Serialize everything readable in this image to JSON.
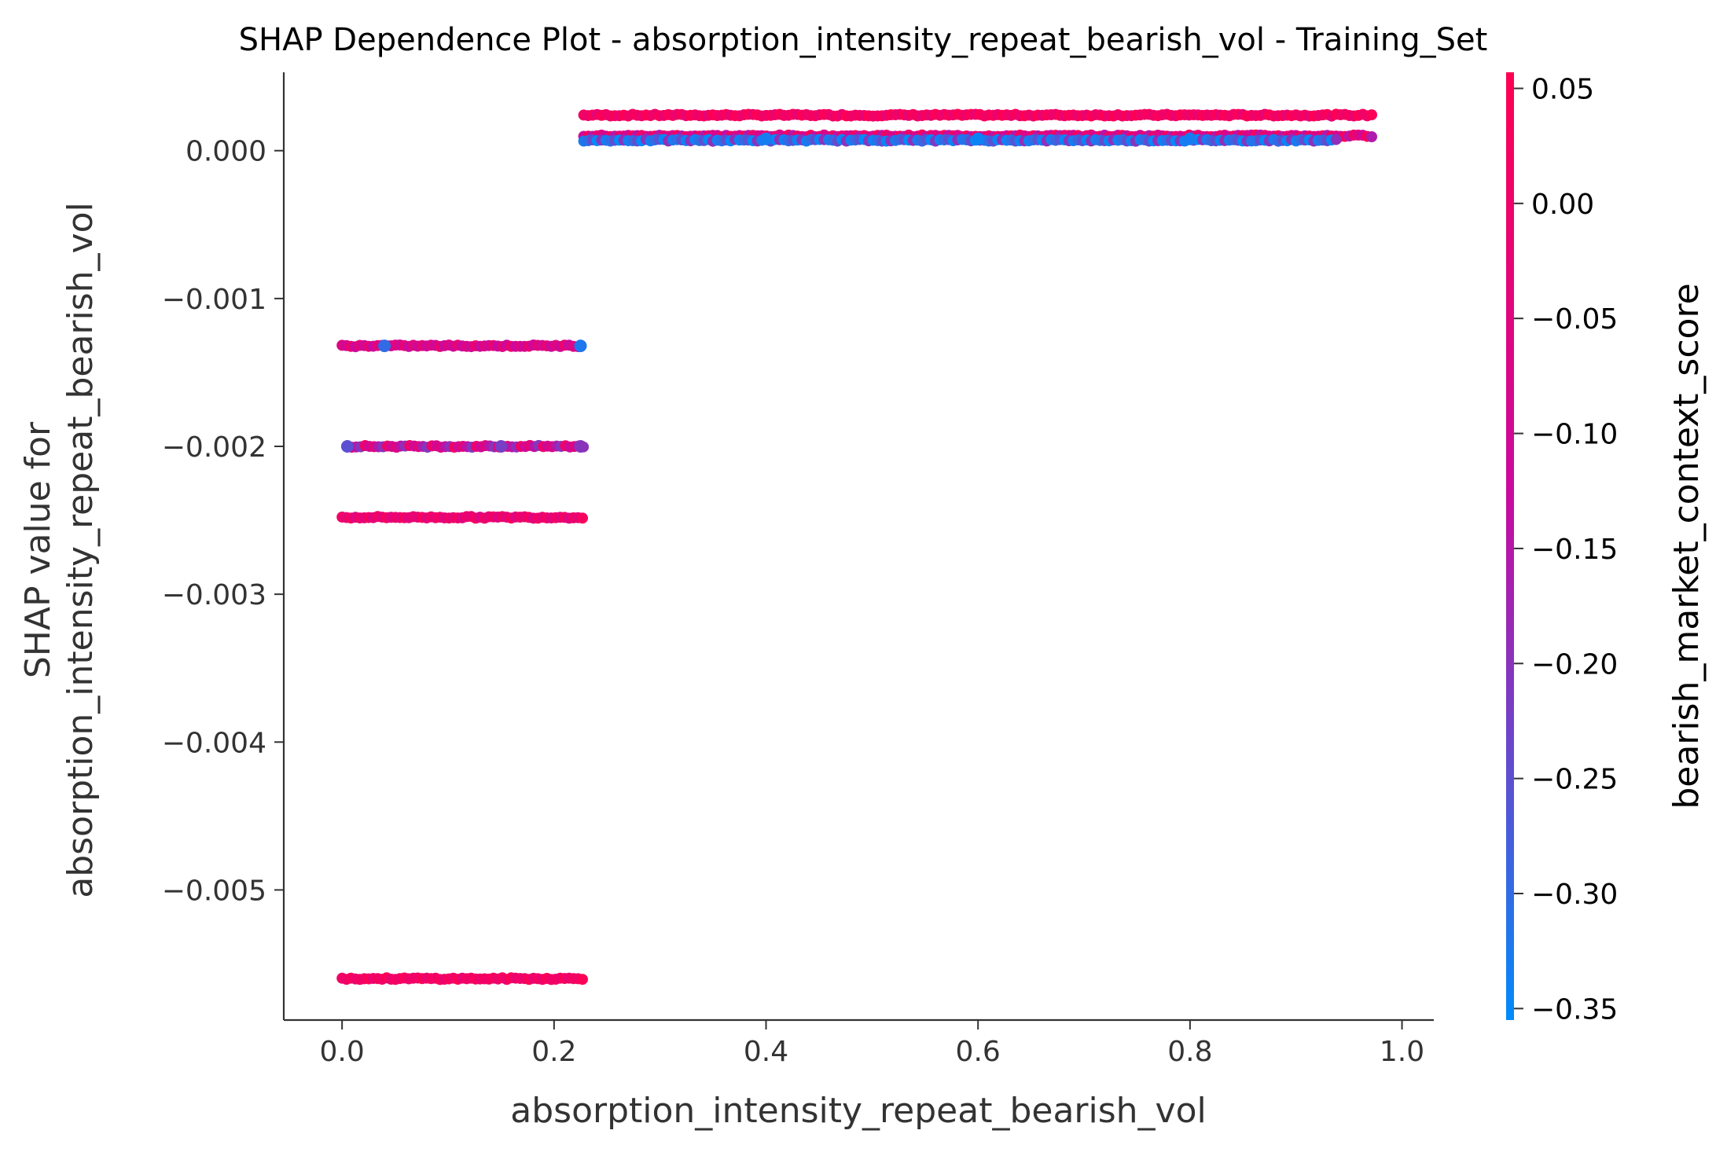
{
  "chart_data": {
    "type": "scatter",
    "title": "SHAP Dependence Plot - absorption_intensity_repeat_bearish_vol - Training_Set",
    "xlabel": "absorption_intensity_repeat_bearish_vol",
    "ylabel_lines": [
      "SHAP value for",
      "absorption_intensity_repeat_bearish_vol"
    ],
    "xlim": [
      -0.055,
      1.03
    ],
    "ylim": [
      -0.00588,
      0.00053
    ],
    "x_ticks": [
      0.0,
      0.2,
      0.4,
      0.6,
      0.8,
      1.0
    ],
    "x_tick_labels": [
      "0.0",
      "0.2",
      "0.4",
      "0.6",
      "0.8",
      "1.0"
    ],
    "y_ticks": [
      0.0,
      -0.001,
      -0.002,
      -0.003,
      -0.004,
      -0.005
    ],
    "y_tick_labels": [
      "0.000",
      "−0.001",
      "−0.002",
      "−0.003",
      "−0.004",
      "−0.005"
    ],
    "grid": false,
    "colorbar": {
      "label": "bearish_market_context_score",
      "range": [
        -0.355,
        0.057
      ],
      "ticks": [
        0.05,
        0.0,
        -0.05,
        -0.1,
        -0.15,
        -0.2,
        -0.25,
        -0.3,
        -0.35
      ],
      "tick_labels": [
        "0.05",
        "0.00",
        "−0.05",
        "−0.10",
        "−0.15",
        "−0.20",
        "−0.25",
        "−0.30",
        "−0.35"
      ],
      "color_low": "#008bfb",
      "color_mid": "#c90aa0",
      "color_high": "#ff0052"
    },
    "point_bands": [
      {
        "x_range": [
          0.228,
          0.975
        ],
        "y": 0.00024,
        "color_values": [
          0.02,
          0.0,
          0.04,
          -0.02,
          0.05
        ]
      },
      {
        "x_range": [
          0.228,
          0.975
        ],
        "y": 0.0001,
        "color_values": [
          -0.1,
          0.03,
          -0.15,
          0.0,
          -0.05
        ]
      },
      {
        "x_range": [
          0.228,
          0.94
        ],
        "y": 7e-05,
        "color_values": [
          -0.33,
          -0.3,
          -0.25,
          -0.35,
          -0.2
        ]
      },
      {
        "x_range": [
          0.0,
          0.225
        ],
        "y": -0.00132,
        "color_values": [
          -0.05,
          -0.1,
          -0.02,
          -0.12
        ]
      },
      {
        "x_range": [
          0.005,
          0.23
        ],
        "y": -0.002,
        "color_values": [
          -0.1,
          -0.05,
          -0.15,
          -0.2,
          0.0
        ]
      },
      {
        "x_range": [
          0.0,
          0.23
        ],
        "y": -0.00248,
        "color_values": [
          0.0,
          -0.03,
          0.02,
          -0.05
        ]
      },
      {
        "x_range": [
          0.0,
          0.23
        ],
        "y": -0.0056,
        "color_values": [
          0.02,
          0.0,
          0.04,
          -0.01
        ]
      }
    ],
    "highlight_points": [
      {
        "x": 0.04,
        "y": -0.00132,
        "c": -0.3
      },
      {
        "x": 0.225,
        "y": -0.00132,
        "c": -0.32
      },
      {
        "x": 0.005,
        "y": -0.002,
        "c": -0.25
      },
      {
        "x": 0.15,
        "y": -0.002,
        "c": -0.22
      },
      {
        "x": 0.225,
        "y": -0.002,
        "c": -0.2
      },
      {
        "x": 0.4,
        "y": 8e-05,
        "c": -0.33
      },
      {
        "x": 0.6,
        "y": 8e-05,
        "c": -0.34
      },
      {
        "x": 0.8,
        "y": 8e-05,
        "c": -0.33
      }
    ]
  }
}
